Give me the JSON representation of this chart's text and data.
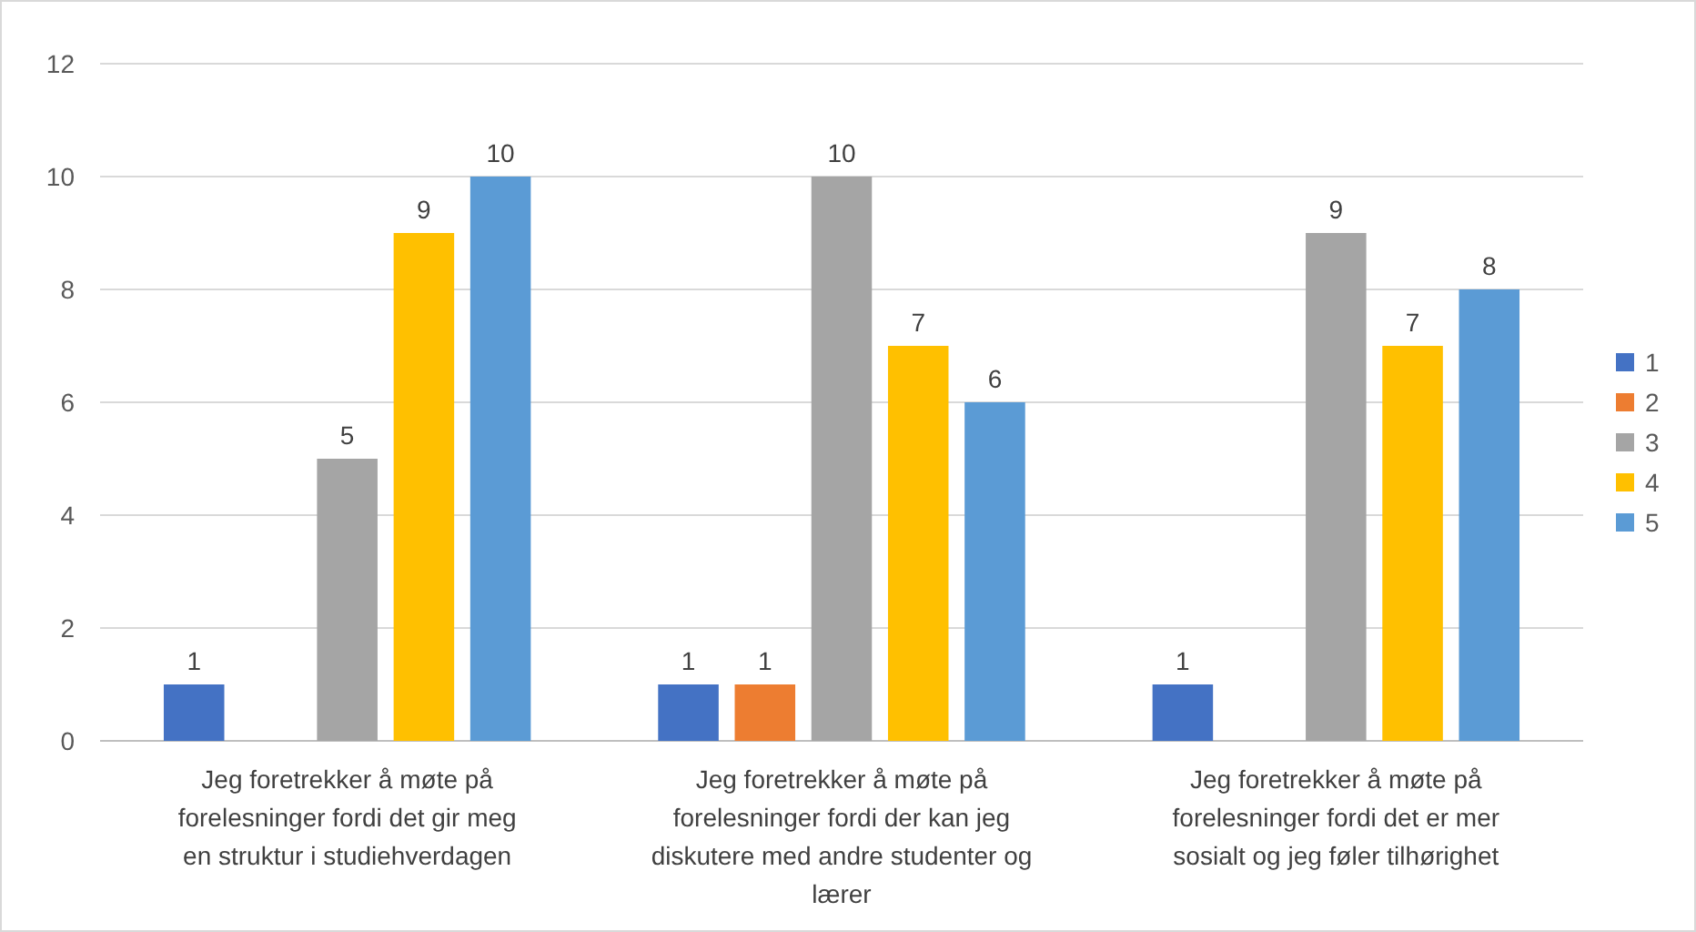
{
  "chart_data": {
    "type": "bar",
    "categories": [
      "Jeg foretrekker å møte på forelesninger fordi det gir meg en struktur i studiehverdagen",
      "Jeg foretrekker å møte på forelesninger fordi der kan jeg diskutere med andre studenter og lærer",
      "Jeg foretrekker å møte på forelesninger fordi det er mer sosialt og jeg føler tilhørighet"
    ],
    "series": [
      {
        "name": "1",
        "color": "#4472c4",
        "values": [
          1,
          1,
          1
        ]
      },
      {
        "name": "2",
        "color": "#ed7d31",
        "values": [
          null,
          1,
          null
        ]
      },
      {
        "name": "3",
        "color": "#a5a5a5",
        "values": [
          5,
          10,
          9
        ]
      },
      {
        "name": "4",
        "color": "#ffc000",
        "values": [
          9,
          7,
          7
        ]
      },
      {
        "name": "5",
        "color": "#5b9bd5",
        "values": [
          10,
          6,
          8
        ]
      }
    ],
    "ylim": [
      0,
      12
    ],
    "yticks": [
      0,
      2,
      4,
      6,
      8,
      10,
      12
    ],
    "grid": "y",
    "legend": "right",
    "data_labels": true
  }
}
